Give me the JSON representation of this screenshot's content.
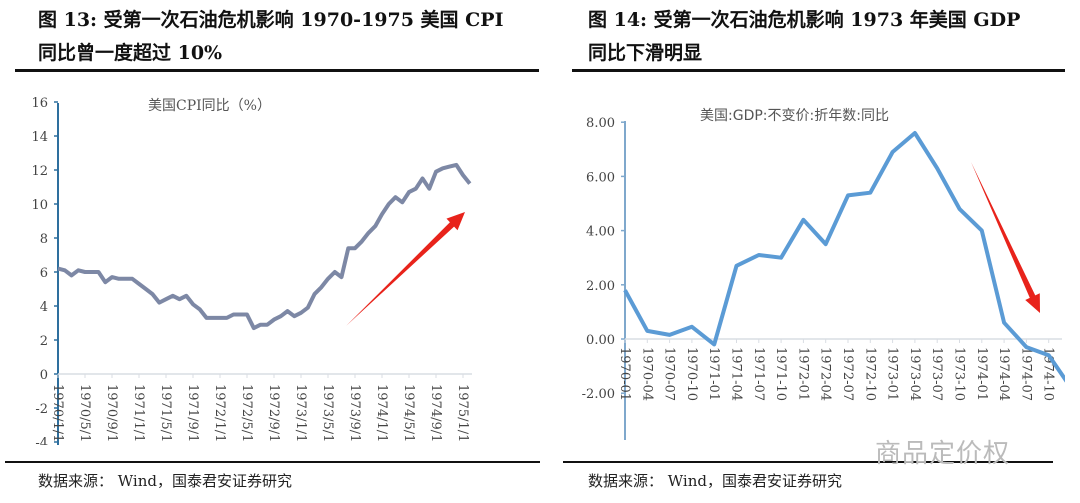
{
  "left": {
    "title_line1": "图 13: 受第一次石油危机影响 1970-1975 美国 CPI",
    "title_line2": "同比曾一度超过 10%",
    "source": "数据来源：  Wind，国泰君安证券研究"
  },
  "right": {
    "title_line1": "图 14: 受第一次石油危机影响 1973 年美国 GDP",
    "title_line2": "同比下滑明显",
    "source": "数据来源：  Wind，国泰君安证券研究"
  },
  "watermark": "商品定价权",
  "chart_data": [
    {
      "type": "line",
      "title": "美国CPI同比（%）",
      "ylim": [
        -4,
        16
      ],
      "yticks": [
        "-4",
        "-2",
        "0",
        "2",
        "4",
        "6",
        "8",
        "10",
        "12",
        "14",
        "16"
      ],
      "xtick_labels": [
        "1970/1/1",
        "1970/5/1",
        "1970/9/1",
        "1971/1/1",
        "1971/5/1",
        "1971/9/1",
        "1972/1/1",
        "1972/5/1",
        "1972/9/1",
        "1973/1/1",
        "1973/5/1",
        "1973/9/1",
        "1974/1/1",
        "1974/5/1",
        "1974/9/1",
        "1975/1/1"
      ],
      "x_start": "1970-01",
      "x_frequency": "monthly",
      "series": [
        {
          "color": "#7d88a5",
          "values": [
            6.2,
            6.1,
            5.8,
            6.1,
            6.0,
            6.0,
            6.0,
            5.4,
            5.7,
            5.6,
            5.6,
            5.6,
            5.3,
            5.0,
            4.7,
            4.2,
            4.4,
            4.6,
            4.4,
            4.6,
            4.1,
            3.8,
            3.3,
            3.3,
            3.3,
            3.3,
            3.5,
            3.5,
            3.5,
            2.7,
            2.9,
            2.9,
            3.2,
            3.4,
            3.7,
            3.4,
            3.6,
            3.9,
            4.7,
            5.1,
            5.6,
            6.0,
            5.7,
            7.4,
            7.4,
            7.8,
            8.3,
            8.7,
            9.4,
            10.0,
            10.4,
            10.1,
            10.7,
            10.9,
            11.5,
            10.9,
            11.9,
            12.1,
            12.2,
            12.3,
            11.7,
            11.2
          ]
        }
      ],
      "annotation": "red-arrow-up",
      "arrow_color": "#e8231b",
      "grid": false
    },
    {
      "type": "line",
      "title": "美国:GDP:不变价:折年数:同比",
      "ylim": [
        -4,
        8
      ],
      "yticks": [
        "-2.00",
        "0.00",
        "2.00",
        "4.00",
        "6.00",
        "8.00"
      ],
      "xtick_labels": [
        "1970-01",
        "1970-04",
        "1970-07",
        "1970-10",
        "1971-01",
        "1971-04",
        "1971-07",
        "1971-10",
        "1972-01",
        "1972-04",
        "1972-07",
        "1972-10",
        "1973-01",
        "1973-04",
        "1973-07",
        "1973-10",
        "1974-01",
        "1974-04",
        "1974-07",
        "1974-10"
      ],
      "x_frequency": "quarterly",
      "series": [
        {
          "color": "#5b9bd5",
          "values": [
            1.8,
            0.3,
            0.15,
            0.45,
            -0.2,
            2.7,
            3.1,
            3.0,
            4.4,
            3.5,
            5.3,
            5.4,
            6.9,
            7.6,
            6.3,
            4.8,
            4.0,
            0.6,
            -0.3,
            -0.6,
            -1.8
          ]
        }
      ],
      "annotation": "red-arrow-down",
      "arrow_color": "#e8231b",
      "grid": false
    }
  ]
}
